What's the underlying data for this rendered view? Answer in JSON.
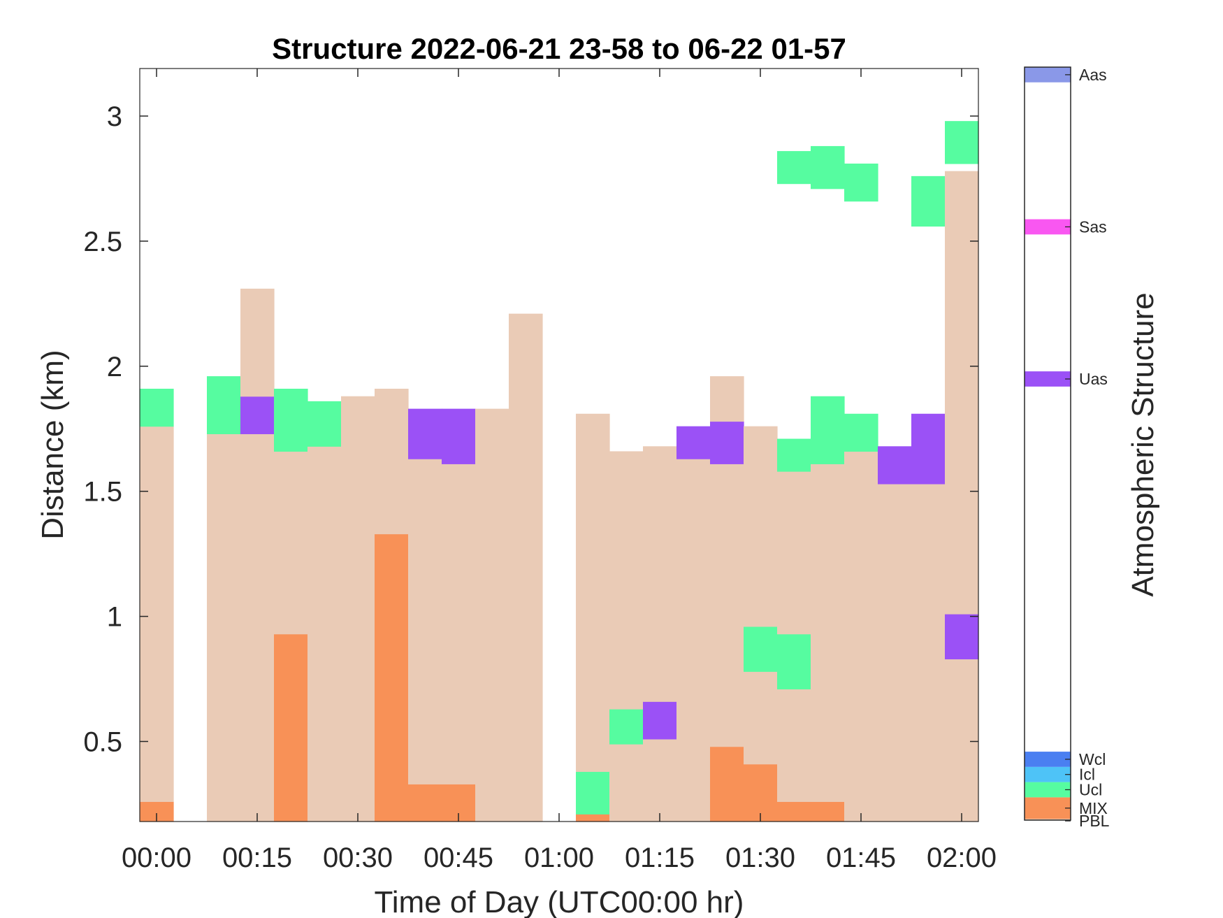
{
  "chart_data": {
    "type": "heatmap",
    "title": "Structure 2022-06-21 23-58 to 06-22 01-57",
    "xlabel": "Time of Day (UTC00:00 hr)",
    "ylabel": "Distance (km)",
    "colorbar_label": "Atmospheric Structure",
    "xlim_minutes": [
      -2.5,
      122.5
    ],
    "ylim_km": [
      0.18,
      3.19
    ],
    "x_ticks": [
      {
        "value": 0,
        "label": "00:00"
      },
      {
        "value": 15,
        "label": "00:15"
      },
      {
        "value": 30,
        "label": "00:30"
      },
      {
        "value": 45,
        "label": "00:45"
      },
      {
        "value": 60,
        "label": "01:00"
      },
      {
        "value": 75,
        "label": "01:15"
      },
      {
        "value": 90,
        "label": "01:30"
      },
      {
        "value": 105,
        "label": "01:45"
      },
      {
        "value": 120,
        "label": "02:00"
      }
    ],
    "y_ticks": [
      {
        "value": 0.5,
        "label": "0.5"
      },
      {
        "value": 1.0,
        "label": "1"
      },
      {
        "value": 1.5,
        "label": "1.5"
      },
      {
        "value": 2.0,
        "label": "2"
      },
      {
        "value": 2.5,
        "label": "2.5"
      },
      {
        "value": 3.0,
        "label": "3"
      }
    ],
    "categories": [
      {
        "code": "PBL",
        "label": "PBL",
        "color": "#EACBB6",
        "range": [
          0.0,
          0.08
        ]
      },
      {
        "code": "MIX",
        "label": "MIX",
        "color": "#F89157",
        "range": [
          0.08,
          1.5
        ]
      },
      {
        "code": "Ucl",
        "label": "Ucl",
        "color": "#56FCA0",
        "range": [
          1.5,
          2.5
        ]
      },
      {
        "code": "Icl",
        "label": "Icl",
        "color": "#4EC3F7",
        "range": [
          2.5,
          3.5
        ]
      },
      {
        "code": "Wcl",
        "label": "Wcl",
        "color": "#4A7FF1",
        "range": [
          3.5,
          4.5
        ]
      },
      {
        "code": "Uas",
        "label": "Uas",
        "color": "#9B51F6",
        "range": [
          28.5,
          29.5
        ]
      },
      {
        "code": "Sas",
        "label": "Sas",
        "color": "#F957F1",
        "range": [
          38.5,
          39.5
        ]
      },
      {
        "code": "Aas",
        "label": "Aas",
        "color": "#8A98E8",
        "range": [
          48.5,
          49.5
        ]
      }
    ],
    "colorbar_range": [
      0,
      49.5
    ],
    "time_bins": [
      {
        "t0": -2.5,
        "t1": 2.5,
        "cells": [
          {
            "y0": 0.18,
            "y1": 0.26,
            "cat": "MIX"
          },
          {
            "y0": 0.26,
            "y1": 1.76,
            "cat": "PBL"
          },
          {
            "y0": 1.76,
            "y1": 1.91,
            "cat": "Ucl"
          }
        ]
      },
      {
        "t0": 7.5,
        "t1": 12.5,
        "cells": [
          {
            "y0": 0.18,
            "y1": 1.73,
            "cat": "PBL"
          },
          {
            "y0": 1.73,
            "y1": 1.96,
            "cat": "Ucl"
          }
        ]
      },
      {
        "t0": 12.5,
        "t1": 17.5,
        "cells": [
          {
            "y0": 0.18,
            "y1": 1.73,
            "cat": "PBL"
          },
          {
            "y0": 1.73,
            "y1": 1.88,
            "cat": "Uas"
          },
          {
            "y0": 1.88,
            "y1": 2.31,
            "cat": "PBL"
          }
        ]
      },
      {
        "t0": 17.5,
        "t1": 22.5,
        "cells": [
          {
            "y0": 0.18,
            "y1": 0.93,
            "cat": "MIX"
          },
          {
            "y0": 0.93,
            "y1": 1.66,
            "cat": "PBL"
          },
          {
            "y0": 1.66,
            "y1": 1.91,
            "cat": "Ucl"
          }
        ]
      },
      {
        "t0": 22.5,
        "t1": 27.5,
        "cells": [
          {
            "y0": 0.18,
            "y1": 1.68,
            "cat": "PBL"
          },
          {
            "y0": 1.68,
            "y1": 1.86,
            "cat": "Ucl"
          }
        ]
      },
      {
        "t0": 27.5,
        "t1": 32.5,
        "cells": [
          {
            "y0": 0.18,
            "y1": 1.88,
            "cat": "PBL"
          }
        ]
      },
      {
        "t0": 32.5,
        "t1": 37.5,
        "cells": [
          {
            "y0": 0.18,
            "y1": 1.33,
            "cat": "MIX"
          },
          {
            "y0": 1.33,
            "y1": 1.91,
            "cat": "PBL"
          }
        ]
      },
      {
        "t0": 37.5,
        "t1": 42.5,
        "cells": [
          {
            "y0": 0.18,
            "y1": 0.33,
            "cat": "MIX"
          },
          {
            "y0": 0.33,
            "y1": 1.63,
            "cat": "PBL"
          },
          {
            "y0": 1.63,
            "y1": 1.83,
            "cat": "Uas"
          }
        ]
      },
      {
        "t0": 42.5,
        "t1": 47.5,
        "cells": [
          {
            "y0": 0.18,
            "y1": 0.33,
            "cat": "MIX"
          },
          {
            "y0": 0.33,
            "y1": 1.61,
            "cat": "PBL"
          },
          {
            "y0": 1.61,
            "y1": 1.83,
            "cat": "Uas"
          }
        ]
      },
      {
        "t0": 47.5,
        "t1": 52.5,
        "cells": [
          {
            "y0": 0.18,
            "y1": 1.83,
            "cat": "PBL"
          }
        ]
      },
      {
        "t0": 52.5,
        "t1": 57.5,
        "cells": [
          {
            "y0": 0.18,
            "y1": 2.21,
            "cat": "PBL"
          }
        ]
      },
      {
        "t0": 62.5,
        "t1": 67.5,
        "cells": [
          {
            "y0": 0.18,
            "y1": 0.21,
            "cat": "MIX"
          },
          {
            "y0": 0.21,
            "y1": 0.38,
            "cat": "Ucl"
          },
          {
            "y0": 0.38,
            "y1": 1.81,
            "cat": "PBL"
          }
        ]
      },
      {
        "t0": 67.5,
        "t1": 72.5,
        "cells": [
          {
            "y0": 0.18,
            "y1": 0.49,
            "cat": "PBL"
          },
          {
            "y0": 0.49,
            "y1": 0.63,
            "cat": "Ucl"
          },
          {
            "y0": 0.63,
            "y1": 1.66,
            "cat": "PBL"
          }
        ]
      },
      {
        "t0": 72.5,
        "t1": 77.5,
        "cells": [
          {
            "y0": 0.18,
            "y1": 0.51,
            "cat": "PBL"
          },
          {
            "y0": 0.51,
            "y1": 0.66,
            "cat": "Uas"
          },
          {
            "y0": 0.66,
            "y1": 1.68,
            "cat": "PBL"
          }
        ]
      },
      {
        "t0": 77.5,
        "t1": 82.5,
        "cells": [
          {
            "y0": 0.18,
            "y1": 1.63,
            "cat": "PBL"
          },
          {
            "y0": 1.63,
            "y1": 1.76,
            "cat": "Uas"
          }
        ]
      },
      {
        "t0": 82.5,
        "t1": 87.5,
        "cells": [
          {
            "y0": 0.18,
            "y1": 0.48,
            "cat": "MIX"
          },
          {
            "y0": 0.48,
            "y1": 1.61,
            "cat": "PBL"
          },
          {
            "y0": 1.61,
            "y1": 1.78,
            "cat": "Uas"
          },
          {
            "y0": 1.78,
            "y1": 1.96,
            "cat": "PBL"
          }
        ]
      },
      {
        "t0": 87.5,
        "t1": 92.5,
        "cells": [
          {
            "y0": 0.18,
            "y1": 0.41,
            "cat": "MIX"
          },
          {
            "y0": 0.41,
            "y1": 0.78,
            "cat": "PBL"
          },
          {
            "y0": 0.78,
            "y1": 0.96,
            "cat": "Ucl"
          },
          {
            "y0": 0.96,
            "y1": 1.76,
            "cat": "PBL"
          }
        ]
      },
      {
        "t0": 92.5,
        "t1": 97.5,
        "cells": [
          {
            "y0": 0.18,
            "y1": 0.26,
            "cat": "MIX"
          },
          {
            "y0": 0.26,
            "y1": 0.71,
            "cat": "PBL"
          },
          {
            "y0": 0.71,
            "y1": 0.93,
            "cat": "Ucl"
          },
          {
            "y0": 0.93,
            "y1": 1.58,
            "cat": "PBL"
          },
          {
            "y0": 1.58,
            "y1": 1.71,
            "cat": "Ucl"
          },
          {
            "y0": 2.73,
            "y1": 2.86,
            "cat": "Ucl"
          }
        ]
      },
      {
        "t0": 97.5,
        "t1": 102.5,
        "cells": [
          {
            "y0": 0.18,
            "y1": 0.26,
            "cat": "MIX"
          },
          {
            "y0": 0.26,
            "y1": 1.61,
            "cat": "PBL"
          },
          {
            "y0": 1.61,
            "y1": 1.88,
            "cat": "Ucl"
          },
          {
            "y0": 2.71,
            "y1": 2.88,
            "cat": "Ucl"
          }
        ]
      },
      {
        "t0": 102.5,
        "t1": 107.5,
        "cells": [
          {
            "y0": 0.18,
            "y1": 1.66,
            "cat": "PBL"
          },
          {
            "y0": 1.66,
            "y1": 1.81,
            "cat": "Ucl"
          },
          {
            "y0": 2.66,
            "y1": 2.81,
            "cat": "Ucl"
          }
        ]
      },
      {
        "t0": 107.5,
        "t1": 112.5,
        "cells": [
          {
            "y0": 0.18,
            "y1": 1.53,
            "cat": "PBL"
          },
          {
            "y0": 1.53,
            "y1": 1.68,
            "cat": "Uas"
          }
        ]
      },
      {
        "t0": 112.5,
        "t1": 117.5,
        "cells": [
          {
            "y0": 0.18,
            "y1": 1.53,
            "cat": "PBL"
          },
          {
            "y0": 1.53,
            "y1": 1.81,
            "cat": "Uas"
          },
          {
            "y0": 2.56,
            "y1": 2.76,
            "cat": "Ucl"
          }
        ]
      },
      {
        "t0": 117.5,
        "t1": 122.5,
        "cells": [
          {
            "y0": 0.18,
            "y1": 0.83,
            "cat": "PBL"
          },
          {
            "y0": 0.83,
            "y1": 1.01,
            "cat": "Uas"
          },
          {
            "y0": 1.01,
            "y1": 2.78,
            "cat": "PBL"
          },
          {
            "y0": 2.81,
            "y1": 2.98,
            "cat": "Ucl"
          }
        ]
      }
    ]
  }
}
